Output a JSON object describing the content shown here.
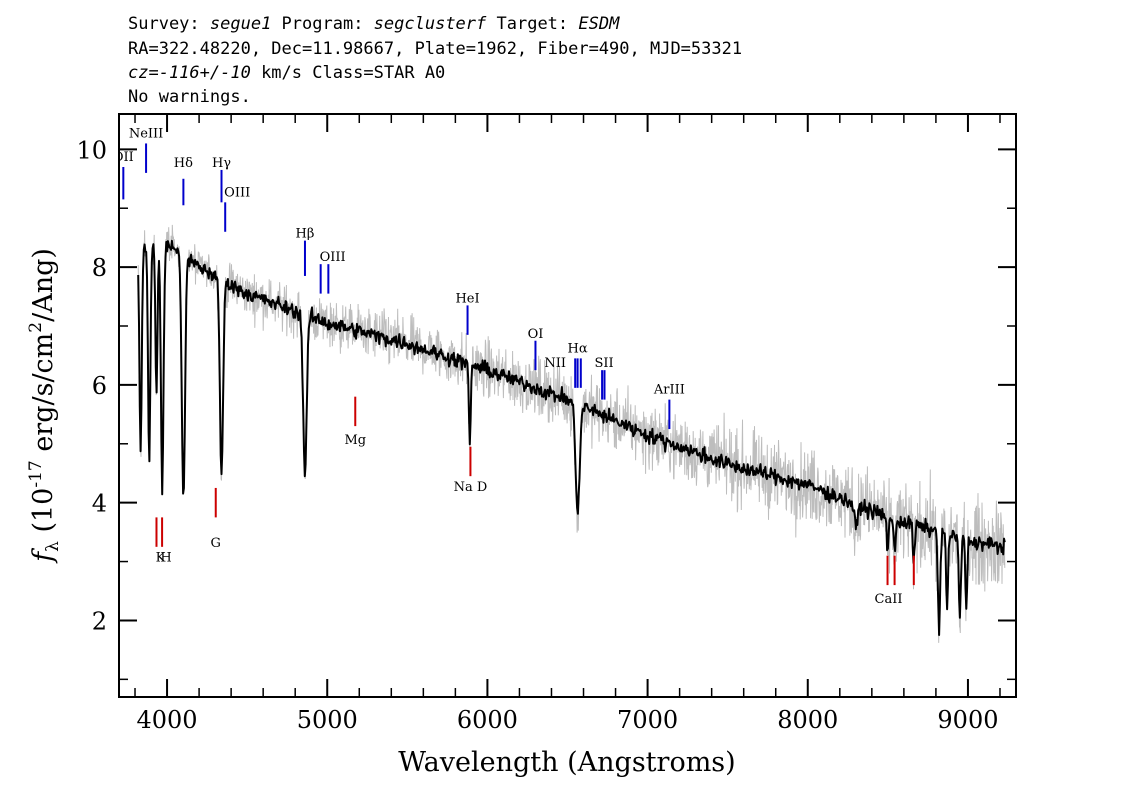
{
  "header": {
    "line1": [
      {
        "text": "Survey: ",
        "italic": false
      },
      {
        "text": "segue1",
        "italic": true
      },
      {
        "text": " Program: ",
        "italic": false
      },
      {
        "text": "segclusterf",
        "italic": true
      },
      {
        "text": " Target: ",
        "italic": false
      },
      {
        "text": "ESDM",
        "italic": true
      }
    ],
    "line2": "RA=322.48220, Dec=11.98667, Plate=1962, Fiber=490, MJD=53321",
    "line3": [
      {
        "text": "cz=-116+/-10",
        "italic": true
      },
      {
        "text": " km/s Class=STAR A0",
        "italic": false
      }
    ],
    "line4": "No warnings."
  },
  "chart_data": {
    "type": "line",
    "title": "",
    "xlabel": "Wavelength (Angstroms)",
    "ylabel_parts": {
      "f": "f",
      "sub": "λ",
      "pre": " (10",
      "exp1": "-17",
      "mid": " erg/s/cm",
      "exp2": "2",
      "post": "/Ang)"
    },
    "xlim": [
      3700,
      9300
    ],
    "ylim": [
      0.7,
      10.6
    ],
    "x_ticks": [
      4000,
      5000,
      6000,
      7000,
      8000,
      9000
    ],
    "y_ticks": [
      2,
      4,
      6,
      8,
      10
    ],
    "colors": {
      "smoothed": "#000000",
      "raw": "#bdbdbd",
      "emission": "#0000cc",
      "absorption": "#cc0000"
    },
    "continuum": [
      {
        "x": 3820,
        "y": 8.3
      },
      {
        "x": 4000,
        "y": 8.4
      },
      {
        "x": 4200,
        "y": 8.0
      },
      {
        "x": 4500,
        "y": 7.55
      },
      {
        "x": 5000,
        "y": 7.05
      },
      {
        "x": 5500,
        "y": 6.7
      },
      {
        "x": 6000,
        "y": 6.25
      },
      {
        "x": 6500,
        "y": 5.75
      },
      {
        "x": 7000,
        "y": 5.15
      },
      {
        "x": 7500,
        "y": 4.65
      },
      {
        "x": 8000,
        "y": 4.3
      },
      {
        "x": 8500,
        "y": 3.75
      },
      {
        "x": 9000,
        "y": 3.35
      },
      {
        "x": 9230,
        "y": 3.25
      }
    ],
    "absorption_features": [
      {
        "x": 3835,
        "depth": 3.5,
        "width": 7
      },
      {
        "x": 3889,
        "depth": 3.6,
        "width": 7
      },
      {
        "x": 3934,
        "depth": 2.6,
        "width": 6
      },
      {
        "x": 3970,
        "depth": 4.2,
        "width": 8
      },
      {
        "x": 4102,
        "depth": 4.1,
        "width": 10
      },
      {
        "x": 4340,
        "depth": 3.3,
        "width": 10
      },
      {
        "x": 4861,
        "depth": 2.7,
        "width": 11
      },
      {
        "x": 5890,
        "depth": 1.3,
        "width": 6
      },
      {
        "x": 6563,
        "depth": 1.9,
        "width": 12
      },
      {
        "x": 8300,
        "depth": 0.4,
        "width": 10
      },
      {
        "x": 8498,
        "depth": 0.5,
        "width": 6
      },
      {
        "x": 8542,
        "depth": 0.6,
        "width": 6
      },
      {
        "x": 8662,
        "depth": 0.6,
        "width": 6
      },
      {
        "x": 8820,
        "depth": 1.6,
        "width": 7
      },
      {
        "x": 8870,
        "depth": 1.2,
        "width": 6
      },
      {
        "x": 8950,
        "depth": 1.4,
        "width": 6
      },
      {
        "x": 8990,
        "depth": 1.1,
        "width": 6
      }
    ],
    "emission_lines": [
      {
        "label": "OII",
        "x": 3727,
        "y_top": 9.7,
        "y_bot": 9.15,
        "label_y": 9.8
      },
      {
        "label": "NeIII",
        "x": 3869,
        "y_top": 10.1,
        "y_bot": 9.6,
        "label_y": 10.2
      },
      {
        "label": "Hδ",
        "x": 4102,
        "y_top": 9.5,
        "y_bot": 9.05,
        "label_y": 9.7
      },
      {
        "label": "Hγ",
        "x": 4340,
        "y_top": 9.65,
        "y_bot": 9.1,
        "label_y": 9.7
      },
      {
        "label": "OIII",
        "x": 4363,
        "y_top": 9.1,
        "y_bot": 8.6,
        "label_y": 9.2
      },
      {
        "label": "Hβ",
        "x": 4861,
        "y_top": 8.45,
        "y_bot": 7.85,
        "label_y": 8.5
      },
      {
        "label": "OIII",
        "x": 4959,
        "y_top": 8.05,
        "y_bot": 7.55,
        "label_y": 8.1
      },
      {
        "label": "OIII",
        "x": 5007,
        "y_top": 8.05,
        "y_bot": 7.55,
        "label_y": 8.1
      },
      {
        "label": "HeI",
        "x": 5876,
        "y_top": 7.35,
        "y_bot": 6.85,
        "label_y": 7.4
      },
      {
        "label": "OI",
        "x": 6300,
        "y_top": 6.75,
        "y_bot": 6.25,
        "label_y": 6.8
      },
      {
        "label": "NII",
        "x": 6548,
        "y_top": 6.45,
        "y_bot": 5.95,
        "label_y": 6.3
      },
      {
        "label": "Hα",
        "x": 6563,
        "y_top": 6.45,
        "y_bot": 5.95,
        "label_y": 6.55
      },
      {
        "label": "NII",
        "x": 6583,
        "y_top": 6.45,
        "y_bot": 5.95,
        "label_y": 6.3
      },
      {
        "label": "SII",
        "x": 6716,
        "y_top": 6.25,
        "y_bot": 5.75,
        "label_y": 6.3
      },
      {
        "label": "SII",
        "x": 6731,
        "y_top": 6.25,
        "y_bot": 5.75,
        "label_y": 6.3
      },
      {
        "label": "ArIII",
        "x": 7136,
        "y_top": 5.75,
        "y_bot": 5.25,
        "label_y": 5.85
      }
    ],
    "absorption_lines": [
      {
        "label": "K",
        "x": 3934,
        "y_top": 3.75,
        "y_bot": 3.25,
        "label_y": 3.0
      },
      {
        "label": "H",
        "x": 3969,
        "y_top": 3.75,
        "y_bot": 3.25,
        "label_y": 3.0
      },
      {
        "label": "G",
        "x": 4304,
        "y_top": 4.25,
        "y_bot": 3.75,
        "label_y": 3.25
      },
      {
        "label": "Mg",
        "x": 5175,
        "y_top": 5.8,
        "y_bot": 5.3,
        "label_y": 5.0
      },
      {
        "label": "Na D",
        "x": 5894,
        "y_top": 4.95,
        "y_bot": 4.45,
        "label_y": 4.2
      },
      {
        "label": "CaII",
        "x": 8498,
        "y_top": 3.1,
        "y_bot": 2.6,
        "label_y": 2.3
      },
      {
        "label": "CaII",
        "x": 8542,
        "y_top": 3.1,
        "y_bot": 2.6,
        "label_y": 2.3
      },
      {
        "label": "CaII",
        "x": 8662,
        "y_top": 3.1,
        "y_bot": 2.6,
        "label_y": 2.3
      }
    ]
  }
}
